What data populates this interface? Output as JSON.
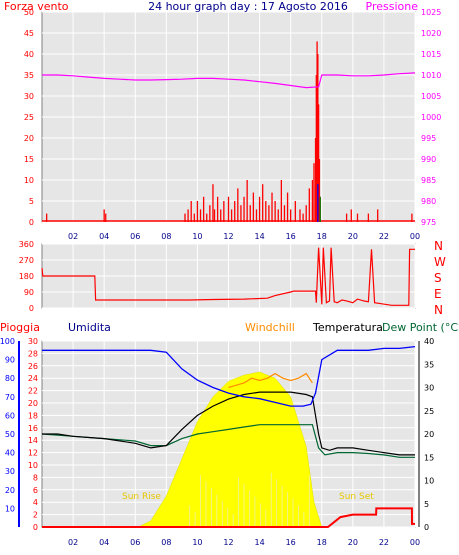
{
  "colors": {
    "wind": "#ff0000",
    "pressure": "#ff00ff",
    "title": "#00008b",
    "rain": "#ff0000",
    "humidity": "#0000ff",
    "windchill": "#ff8c00",
    "temperature": "#000000",
    "dewpoint": "#006633",
    "solar": "#ffff00",
    "sun_label": "#e6c800",
    "panel_bg": "#e6e6e6"
  },
  "chart_data": [
    {
      "type": "bar",
      "title": "24 hour graph day : 17 Agosto 2016",
      "left_label": "Forza vento",
      "right_label": "Pressione",
      "left_ticks": [
        "0",
        "5",
        "10",
        "15",
        "20",
        "25",
        "30",
        "35",
        "40",
        "45",
        "50"
      ],
      "right_ticks": [
        "975",
        "980",
        "985",
        "990",
        "995",
        "1000",
        "1005",
        "1010",
        "1015",
        "1020",
        "1025"
      ],
      "x_ticks": [
        "02",
        "04",
        "06",
        "08",
        "10",
        "12",
        "14",
        "16",
        "18",
        "20",
        "22",
        "00"
      ],
      "x_range": [
        0,
        24
      ],
      "ylim_left": [
        0,
        50
      ],
      "ylim_right": [
        975,
        1025
      ],
      "pressure": {
        "x": [
          0,
          1,
          2,
          3,
          4,
          5,
          6,
          7,
          8,
          9,
          10,
          11,
          12,
          13,
          14,
          15,
          16,
          17,
          17.8,
          18,
          19,
          20,
          21,
          22,
          23,
          24
        ],
        "y": [
          1010,
          1010,
          1009.8,
          1009.5,
          1009.2,
          1009,
          1008.8,
          1008.8,
          1008.9,
          1009,
          1009.2,
          1009.2,
          1009,
          1008.8,
          1008.4,
          1008,
          1007.5,
          1007,
          1007.2,
          1010,
          1010,
          1009.8,
          1009.8,
          1010,
          1010.3,
          1010.5
        ]
      },
      "wind_bars": [
        {
          "x": 0.3,
          "v": 2
        },
        {
          "x": 4.0,
          "v": 3
        },
        {
          "x": 4.1,
          "v": 2
        },
        {
          "x": 9.2,
          "v": 2
        },
        {
          "x": 9.4,
          "v": 3
        },
        {
          "x": 9.6,
          "v": 5
        },
        {
          "x": 9.8,
          "v": 2
        },
        {
          "x": 10.0,
          "v": 5
        },
        {
          "x": 10.2,
          "v": 3
        },
        {
          "x": 10.4,
          "v": 6
        },
        {
          "x": 10.6,
          "v": 2
        },
        {
          "x": 10.8,
          "v": 4
        },
        {
          "x": 11.0,
          "v": 9
        },
        {
          "x": 11.1,
          "v": 3
        },
        {
          "x": 11.3,
          "v": 6
        },
        {
          "x": 11.5,
          "v": 3
        },
        {
          "x": 11.7,
          "v": 5
        },
        {
          "x": 12.0,
          "v": 6
        },
        {
          "x": 12.2,
          "v": 3
        },
        {
          "x": 12.4,
          "v": 5
        },
        {
          "x": 12.6,
          "v": 8
        },
        {
          "x": 12.8,
          "v": 4
        },
        {
          "x": 13.0,
          "v": 6
        },
        {
          "x": 13.2,
          "v": 10
        },
        {
          "x": 13.4,
          "v": 4
        },
        {
          "x": 13.6,
          "v": 7
        },
        {
          "x": 13.8,
          "v": 3
        },
        {
          "x": 14.0,
          "v": 6
        },
        {
          "x": 14.2,
          "v": 9
        },
        {
          "x": 14.4,
          "v": 5
        },
        {
          "x": 14.6,
          "v": 4
        },
        {
          "x": 14.8,
          "v": 7
        },
        {
          "x": 15.0,
          "v": 5
        },
        {
          "x": 15.2,
          "v": 3
        },
        {
          "x": 15.4,
          "v": 10
        },
        {
          "x": 15.6,
          "v": 4
        },
        {
          "x": 15.8,
          "v": 7
        },
        {
          "x": 16.0,
          "v": 3
        },
        {
          "x": 16.3,
          "v": 5
        },
        {
          "x": 16.6,
          "v": 3
        },
        {
          "x": 16.8,
          "v": 2
        },
        {
          "x": 17.0,
          "v": 4
        },
        {
          "x": 17.2,
          "v": 8
        },
        {
          "x": 17.4,
          "v": 10
        },
        {
          "x": 17.5,
          "v": 14
        },
        {
          "x": 17.6,
          "v": 20
        },
        {
          "x": 17.65,
          "v": 35
        },
        {
          "x": 17.7,
          "v": 43
        },
        {
          "x": 17.75,
          "v": 40
        },
        {
          "x": 17.8,
          "v": 28
        },
        {
          "x": 17.85,
          "v": 15
        },
        {
          "x": 17.9,
          "v": 6
        },
        {
          "x": 19.6,
          "v": 2
        },
        {
          "x": 19.9,
          "v": 3
        },
        {
          "x": 20.3,
          "v": 2
        },
        {
          "x": 21.0,
          "v": 2
        },
        {
          "x": 21.6,
          "v": 3
        },
        {
          "x": 23.8,
          "v": 2
        }
      ],
      "wind_extra": [
        {
          "x": 17.75,
          "v": 9,
          "color": "#0000ff"
        },
        {
          "x": 17.9,
          "v": 6,
          "color": "#008000"
        }
      ]
    },
    {
      "type": "line",
      "right_labels": [
        "N",
        "W",
        "S",
        "E",
        "N"
      ],
      "left_ticks": [
        "360",
        "270",
        "180",
        "90",
        "0"
      ],
      "ylim": [
        0,
        360
      ],
      "direction": {
        "x": [
          0,
          0.05,
          3.4,
          3.45,
          6,
          8,
          9.5,
          11,
          13,
          14.5,
          15,
          16,
          16.2,
          17,
          17.6,
          17.65,
          17.8,
          18.0,
          18.1,
          18.3,
          18.5,
          18.6,
          18.8,
          19.0,
          19.3,
          19.6,
          20.0,
          20.3,
          20.7,
          21.0,
          21.2,
          21.4,
          22.5,
          23.6,
          23.65,
          24
        ],
        "y": [
          225,
          180,
          180,
          45,
          45,
          45,
          45,
          48,
          50,
          55,
          70,
          90,
          95,
          95,
          95,
          30,
          340,
          20,
          340,
          30,
          40,
          340,
          35,
          30,
          45,
          40,
          30,
          50,
          40,
          35,
          330,
          30,
          15,
          15,
          330,
          330
        ]
      }
    },
    {
      "type": "area",
      "left_label": "Pioggia",
      "series_labels": [
        "Umidita",
        "Windchill",
        "Temperatura",
        "Dew Point (°C"
      ],
      "rain_ticks": [
        "0",
        "2",
        "4",
        "6",
        "8",
        "10",
        "12",
        "14",
        "16",
        "18",
        "20",
        "22",
        "24",
        "26",
        "28",
        "30"
      ],
      "hum_ticks": [
        "10",
        "20",
        "30",
        "40",
        "50",
        "60",
        "70",
        "80",
        "90",
        "100"
      ],
      "temp_ticks": [
        "0",
        "5",
        "10",
        "15",
        "20",
        "25",
        "30",
        "35",
        "40"
      ],
      "x_ticks": [
        "02",
        "04",
        "06",
        "08",
        "10",
        "12",
        "14",
        "16",
        "18",
        "20",
        "22",
        "00"
      ],
      "annotations": [
        "Sun Rise",
        "Sun Set"
      ],
      "humidity": {
        "x": [
          0,
          1,
          2,
          4,
          6,
          7,
          8,
          9,
          10,
          11,
          12,
          13,
          14,
          15,
          16,
          16.8,
          17.3,
          17.6,
          18,
          19,
          20,
          21,
          22,
          23,
          24
        ],
        "y": [
          95,
          95,
          95,
          95,
          95,
          95,
          94,
          85,
          79,
          75,
          72,
          70,
          69,
          67,
          65,
          65,
          66,
          72,
          90,
          95,
          95,
          95,
          96,
          96,
          97
        ]
      },
      "temperature": {
        "x": [
          0,
          1,
          2,
          4,
          6,
          7,
          8,
          9,
          10,
          11,
          12,
          13,
          14,
          15,
          16,
          17,
          17.4,
          17.8,
          18,
          18.5,
          19,
          20,
          21,
          22,
          23,
          24
        ],
        "y": [
          20,
          20,
          19.5,
          19,
          18,
          17,
          17.5,
          21,
          24,
          26,
          27.5,
          28.5,
          29,
          29,
          29,
          28.5,
          28,
          20,
          17,
          16.5,
          17,
          17,
          16.5,
          16,
          15.5,
          15.5
        ]
      },
      "windchill": {
        "x": [
          12.0,
          12.5,
          13,
          13.5,
          14,
          14.5,
          15,
          15.5,
          16,
          16.5,
          17,
          17.4
        ],
        "y": [
          30,
          30.5,
          31,
          32,
          31.5,
          32,
          33,
          32,
          31.5,
          32,
          33,
          31
        ]
      },
      "dewpoint": {
        "x": [
          0,
          2,
          4,
          6,
          7,
          8,
          9,
          10,
          11,
          12,
          13,
          14,
          15,
          16,
          17,
          17.4,
          17.8,
          18.2,
          19,
          20,
          21,
          22,
          23,
          24
        ],
        "y": [
          20,
          19.5,
          19,
          18.5,
          17.5,
          17.5,
          19,
          20,
          20.5,
          21,
          21.5,
          22,
          22,
          22,
          22,
          22,
          17,
          15.5,
          16,
          16,
          15.8,
          15.5,
          15,
          15
        ]
      },
      "solar": {
        "x": [
          6.2,
          7,
          8,
          9,
          10,
          11,
          12,
          13,
          14,
          15,
          16,
          17,
          17.5,
          18
        ],
        "y": [
          0,
          1,
          5,
          11,
          17,
          21,
          23.5,
          24.5,
          25,
          24,
          21,
          13,
          4,
          0
        ]
      },
      "rain": {
        "x": [
          0,
          18.4,
          19.2,
          20,
          20.01,
          21.5,
          21.51,
          23.8,
          23.81,
          24
        ],
        "y": [
          0,
          0,
          1.6,
          2,
          2,
          2,
          3,
          3,
          0.5,
          0.5
        ]
      }
    }
  ]
}
